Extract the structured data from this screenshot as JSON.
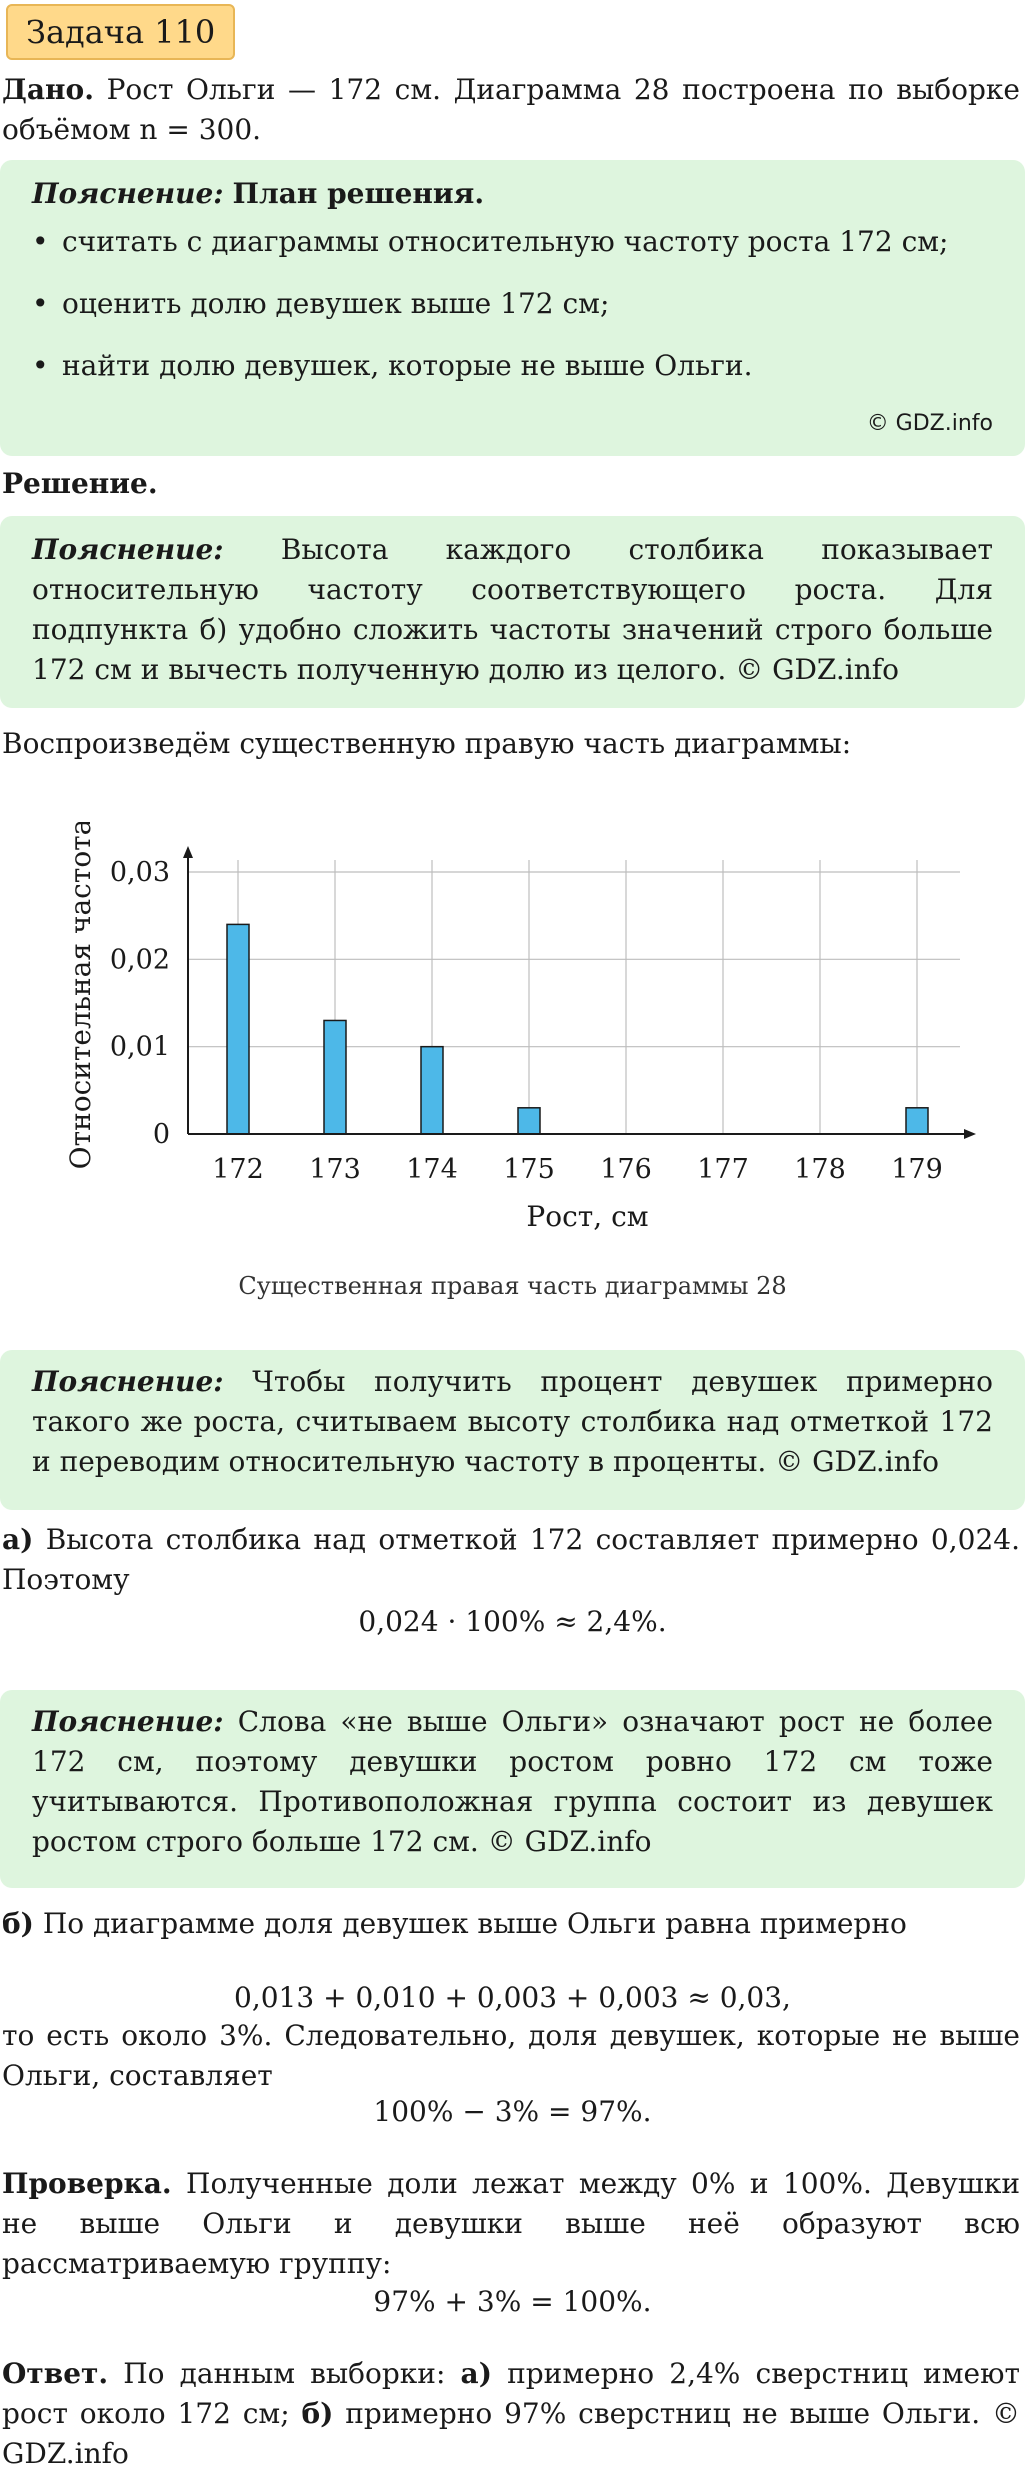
{
  "task_title": "Задача 110",
  "given": {
    "label": "Дано.",
    "text": "Рост Ольги — 172 см. Диаграмма 28 построена по выборке объёмом n = 300."
  },
  "plan_box": {
    "label": "Пояснение:",
    "title": "План решения.",
    "bullets": [
      "считать с диаграммы относительную частоту роста 172 см;",
      "оценить долю девушек выше 172 см;",
      "найти долю девушек, которые не выше Ольги."
    ],
    "sign": "© GDZ.info"
  },
  "solution_heading": "Решение.",
  "explain1": {
    "label": "Пояснение:",
    "text": "Высота каждого столбика показывает относительную частоту соответствующего роста. Для подпункта б) удобно сложить частоты значений строго больше 172 см и вычесть полученную долю из целого. © GDZ.info"
  },
  "reproduce_text": "Воспроизведём существенную правую часть диаграммы:",
  "chart_data": {
    "type": "bar",
    "categories": [
      "172",
      "173",
      "174",
      "175",
      "176",
      "177",
      "178",
      "179"
    ],
    "values": [
      0.024,
      0.013,
      0.01,
      0.003,
      0,
      0,
      0,
      0.003
    ],
    "ylim": [
      0,
      0.03
    ],
    "yticks": [
      "0",
      "0,01",
      "0,02",
      "0,03"
    ],
    "xlabel": "Рост, см",
    "ylabel": "Относительная частота",
    "bar_color": "#4db8e8",
    "grid": true
  },
  "chart_caption": "Существенная правая часть диаграммы 28",
  "explain2": {
    "label": "Пояснение:",
    "text": "Чтобы получить процент девушек примерно такого же роста, считываем высоту столбика над отметкой 172 и переводим относительную частоту в проценты. © GDZ.info"
  },
  "part_a": {
    "label": "а)",
    "text": "Высота столбика над отметкой 172 составляет примерно 0,024. Поэтому",
    "formula": "0,024 · 100% ≈ 2,4%."
  },
  "explain3": {
    "label": "Пояснение:",
    "text": "Слова «не выше Ольги» означают рост не более 172 см, поэтому девушки ростом ровно 172 см тоже учитываются. Противоположная группа состоит из девушек ростом строго больше 172 см. © GDZ.info"
  },
  "part_b": {
    "label": "б)",
    "text": "По диаграмме доля девушек выше Ольги равна примерно",
    "formula1": "0,013 + 0,010 + 0,003 + 0,003 ≈ 0,03,",
    "text2": "то есть около 3%. Следовательно, доля девушек, которые не выше Ольги, составляет",
    "formula2": "100% − 3% = 97%."
  },
  "check": {
    "label": "Проверка.",
    "text": "Полученные доли лежат между 0% и 100%. Девушки не выше Ольги и девушки выше неё образуют всю рассматриваемую группу:",
    "formula": "97% + 3% = 100%."
  },
  "answer": {
    "label": "Ответ.",
    "text_before": "По данным выборки:",
    "a_label": "а)",
    "a_text": "примерно 2,4% сверстниц имеют рост около 172 см;",
    "b_label": "б)",
    "b_text": "примерно 97% сверстниц не выше Ольги.",
    "sign": "© GDZ.info"
  },
  "colors": {
    "note_bg": "#def5de",
    "title_bg": "#ffd98a",
    "bar": "#4db8e8"
  }
}
